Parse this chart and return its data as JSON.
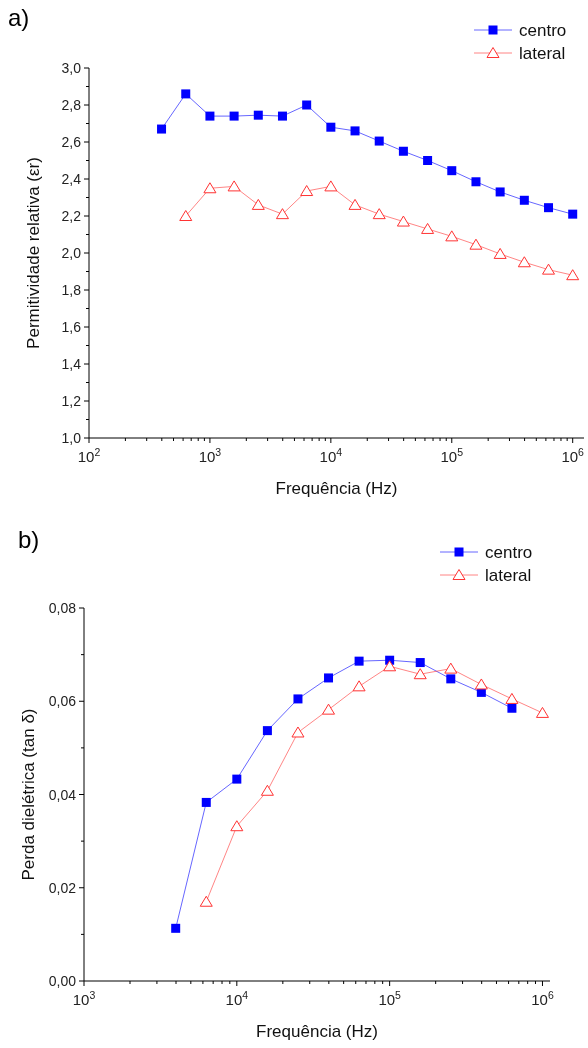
{
  "chart_data": [
    {
      "type": "line",
      "title": "a)",
      "xlabel": "Frequência (Hz)",
      "ylabel": "Permitividade relativa (εr)",
      "log": "x",
      "xlim": [
        100,
        1240000
      ],
      "ylim": [
        1.0,
        3.0
      ],
      "xticks": [
        {
          "value": 100,
          "label": "10$^{2}$"
        },
        {
          "value": 1000,
          "label": "10$^{3}$"
        },
        {
          "value": 10000,
          "label": "10$^{4}$"
        },
        {
          "value": 100000,
          "label": "10$^{5}$"
        },
        {
          "value": 1000000,
          "label": "10$^{6}$"
        }
      ],
      "yticks": [
        {
          "value": 1.0,
          "label": "1,0"
        },
        {
          "value": 1.2,
          "label": "1,2"
        },
        {
          "value": 1.4,
          "label": "1,4"
        },
        {
          "value": 1.6,
          "label": "1,6"
        },
        {
          "value": 1.8,
          "label": "1,8"
        },
        {
          "value": 2.0,
          "label": "2,0"
        },
        {
          "value": 2.2,
          "label": "2,2"
        },
        {
          "value": 2.4,
          "label": "2,4"
        },
        {
          "value": 2.6,
          "label": "2,6"
        },
        {
          "value": 2.8,
          "label": "2,8"
        },
        {
          "value": 3.0,
          "label": "3,0"
        }
      ],
      "grid": false,
      "legend": "top right",
      "series": [
        {
          "name": "centro",
          "color": "#0000ff",
          "marker": "square",
          "x": [
            398,
            631,
            1000,
            1585,
            2512,
            3981,
            6310,
            10000,
            15850,
            25120,
            39810,
            63100,
            100000,
            158500,
            251200,
            398100,
            631000,
            1000000
          ],
          "values": [
            2.67,
            2.86,
            2.74,
            2.74,
            2.745,
            2.74,
            2.8,
            2.68,
            2.66,
            2.605,
            2.55,
            2.5,
            2.445,
            2.385,
            2.33,
            2.285,
            2.245,
            2.21
          ]
        },
        {
          "name": "lateral",
          "color": "#ff3333",
          "marker": "triangle",
          "x": [
            631,
            1000,
            1585,
            2512,
            3981,
            6310,
            10000,
            15850,
            25120,
            39810,
            63100,
            100000,
            158500,
            251200,
            398100,
            631000,
            1000000
          ],
          "values": [
            2.2,
            2.35,
            2.36,
            2.26,
            2.21,
            2.335,
            2.36,
            2.26,
            2.21,
            2.17,
            2.13,
            2.09,
            2.045,
            1.995,
            1.95,
            1.91,
            1.88
          ]
        }
      ]
    },
    {
      "type": "line",
      "title": "b)",
      "xlabel": "Frequência (Hz)",
      "ylabel": "Perda dielétrica (tan δ)",
      "log": "x",
      "xlim": [
        1000,
        1120000
      ],
      "ylim": [
        0,
        0.08
      ],
      "xticks": [
        {
          "value": 1000,
          "label": "10$^{3}$"
        },
        {
          "value": 10000,
          "label": "10$^{4}$"
        },
        {
          "value": 100000,
          "label": "10$^{5}$"
        },
        {
          "value": 1000000,
          "label": "10$^{6}$"
        }
      ],
      "yticks": [
        {
          "value": 0,
          "label": "0,00"
        },
        {
          "value": 0.02,
          "label": "0,02"
        },
        {
          "value": 0.04,
          "label": "0,04"
        },
        {
          "value": 0.06,
          "label": "0,06"
        },
        {
          "value": 0.08,
          "label": "0,08"
        }
      ],
      "grid": false,
      "legend": "top right",
      "series": [
        {
          "name": "centro",
          "color": "#0000ff",
          "marker": "square",
          "x": [
            3981,
            6310,
            10000,
            15850,
            25120,
            39810,
            63100,
            100000,
            158500,
            251200,
            398100,
            631000
          ],
          "values": [
            0.0113,
            0.0383,
            0.0433,
            0.0537,
            0.0605,
            0.065,
            0.0686,
            0.0688,
            0.0683,
            0.0648,
            0.0619,
            0.0585
          ]
        },
        {
          "name": "lateral",
          "color": "#ff3333",
          "marker": "triangle",
          "x": [
            6310,
            10000,
            15850,
            25120,
            39810,
            63100,
            100000,
            158500,
            251200,
            398100,
            631000,
            1000000
          ],
          "values": [
            0.017,
            0.0332,
            0.0408,
            0.0533,
            0.0582,
            0.0632,
            0.0675,
            0.0658,
            0.067,
            0.0636,
            0.0605,
            0.0575
          ]
        }
      ]
    }
  ]
}
